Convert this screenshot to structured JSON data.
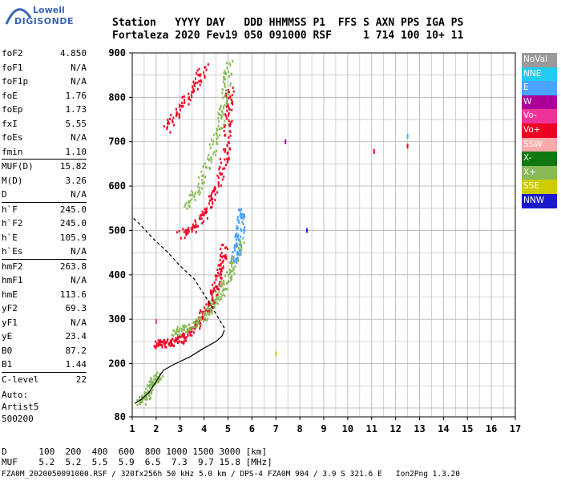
{
  "logo": {
    "line1": "Lowell",
    "line2": "DIGISONDE"
  },
  "header": {
    "row1": [
      "Station",
      "YYYY",
      "DAY",
      "DDD",
      "HHMMSS",
      "P1",
      "FFS",
      "S",
      "AXN",
      "PPS",
      "IGA",
      "PS"
    ],
    "row2": [
      "Fortaleza",
      "2020",
      "Fev19",
      "050",
      "091000",
      "RSF",
      "",
      "1",
      "714",
      "100",
      "10+",
      "11"
    ]
  },
  "params": [
    {
      "label": "foF2",
      "value": "4.850"
    },
    {
      "label": "foF1",
      "value": "N/A"
    },
    {
      "label": "foF1p",
      "value": "N/A"
    },
    {
      "label": "foE",
      "value": "1.76"
    },
    {
      "label": "foEp",
      "value": "1.73"
    },
    {
      "label": "fxI",
      "value": "5.55"
    },
    {
      "label": "foEs",
      "value": "N/A"
    },
    {
      "label": "fmin",
      "value": "1.10"
    },
    {
      "label": "MUF(D)",
      "value": "15.82"
    },
    {
      "label": "M(D)",
      "value": "3.26"
    },
    {
      "label": "D",
      "value": "N/A"
    },
    {
      "label": "h`F",
      "value": "245.0"
    },
    {
      "label": "h`F2",
      "value": "245.0"
    },
    {
      "label": "h`E",
      "value": "105.9"
    },
    {
      "label": "h`Es",
      "value": "N/A"
    },
    {
      "label": "hmF2",
      "value": "263.8"
    },
    {
      "label": "hmF1",
      "value": "N/A"
    },
    {
      "label": "hmE",
      "value": "113.6"
    },
    {
      "label": "yF2",
      "value": "69.3"
    },
    {
      "label": "yF1",
      "value": "N/A"
    },
    {
      "label": "yE",
      "value": "23.4"
    },
    {
      "label": "B0",
      "value": "87.2"
    },
    {
      "label": "B1",
      "value": "1.44"
    },
    {
      "label": "C-level",
      "value": "22"
    }
  ],
  "auto": {
    "line1": "Auto:",
    "line2": "Artist5",
    "line3": "500200"
  },
  "legend": [
    {
      "label": "NoVal",
      "color": "#9a9a9a"
    },
    {
      "label": "NNE",
      "color": "#22ccee"
    },
    {
      "label": "E",
      "color": "#4aa3ff"
    },
    {
      "label": "W",
      "color": "#aa0099"
    },
    {
      "label": "Vo-",
      "color": "#ee3399"
    },
    {
      "label": "Vo+",
      "color": "#ee0022"
    },
    {
      "label": "SSW",
      "color": "#ffaaaa"
    },
    {
      "label": "X-",
      "color": "#117711"
    },
    {
      "label": "X+",
      "color": "#88bb55"
    },
    {
      "label": "SSE",
      "color": "#cccc00"
    },
    {
      "label": "NNW",
      "color": "#1a1acc"
    }
  ],
  "footer": {
    "row1_label": "D",
    "row1": [
      "100",
      "200",
      "400",
      "600",
      "800",
      "1000",
      "1500",
      "3000"
    ],
    "row1_unit": "[km]",
    "row2_label": "MUF",
    "row2": [
      "5.2",
      "5.2",
      "5.5",
      "5.9",
      "6.5",
      "7.3",
      "9.7",
      "15.8"
    ],
    "row2_unit": "[MHz]",
    "file_line": "FZA0M_2020050091000.RSF / 320fx256h 50 kHz 5.0 km / DPS-4 FZA0M 904 / 3.9 S 321.6 E",
    "version": "Ion2Png 1.3.20"
  },
  "chart_data": {
    "type": "scatter",
    "title": "",
    "xlabel": "",
    "ylabel": "",
    "xlim": [
      1,
      17
    ],
    "ylim": [
      80,
      900
    ],
    "x_ticks": [
      1,
      2,
      3,
      4,
      5,
      6,
      7,
      8,
      9,
      10,
      11,
      12,
      13,
      14,
      15,
      16,
      17
    ],
    "y_ticks": [
      80,
      200,
      300,
      400,
      500,
      600,
      700,
      800,
      900
    ],
    "grid": true,
    "ionogram_traces": [
      {
        "name": "E-layer trace",
        "color": "#88bb55",
        "points": [
          [
            1.3,
            115
          ],
          [
            1.5,
            125
          ],
          [
            1.7,
            140
          ],
          [
            1.9,
            165
          ],
          [
            2.1,
            175
          ]
        ]
      },
      {
        "name": "F2 O-trace",
        "color": "#ee0022",
        "points": [
          [
            2.0,
            245
          ],
          [
            2.3,
            248
          ],
          [
            2.8,
            252
          ],
          [
            3.2,
            262
          ],
          [
            3.6,
            285
          ],
          [
            4.0,
            315
          ],
          [
            4.3,
            345
          ],
          [
            4.5,
            380
          ],
          [
            4.7,
            420
          ],
          [
            4.85,
            470
          ]
        ]
      },
      {
        "name": "F2 X-trace",
        "color": "#88bb55",
        "points": [
          [
            2.6,
            270
          ],
          [
            3.2,
            280
          ],
          [
            3.8,
            298
          ],
          [
            4.3,
            330
          ],
          [
            4.7,
            365
          ],
          [
            5.0,
            400
          ],
          [
            5.3,
            440
          ],
          [
            5.5,
            480
          ]
        ]
      },
      {
        "name": "F2 E-dir",
        "color": "#4aa3ff",
        "points": [
          [
            5.2,
            430
          ],
          [
            5.4,
            470
          ],
          [
            5.5,
            510
          ],
          [
            5.55,
            550
          ]
        ]
      },
      {
        "name": "multi-hop",
        "color": "#ee0022",
        "points": [
          [
            3.0,
            490
          ],
          [
            3.6,
            510
          ],
          [
            4.1,
            550
          ],
          [
            4.6,
            610
          ],
          [
            4.9,
            680
          ],
          [
            5.0,
            760
          ],
          [
            5.05,
            820
          ]
        ]
      },
      {
        "name": "multi-hop high",
        "color": "#88bb55",
        "points": [
          [
            3.2,
            560
          ],
          [
            3.8,
            600
          ],
          [
            4.3,
            680
          ],
          [
            4.7,
            750
          ],
          [
            4.9,
            820
          ],
          [
            5.0,
            880
          ]
        ]
      },
      {
        "name": "upper",
        "color": "#ee0022",
        "points": [
          [
            2.4,
            730
          ],
          [
            3.0,
            780
          ],
          [
            3.6,
            830
          ],
          [
            4.0,
            870
          ]
        ]
      },
      {
        "name": "electron density profile",
        "color": "#000000",
        "points": [
          [
            1.1,
            110
          ],
          [
            1.4,
            120
          ],
          [
            1.7,
            135
          ],
          [
            2.0,
            160
          ],
          [
            2.3,
            185
          ],
          [
            2.8,
            200
          ],
          [
            3.4,
            215
          ],
          [
            4.0,
            235
          ],
          [
            4.5,
            250
          ],
          [
            4.75,
            262
          ],
          [
            4.85,
            275
          ]
        ]
      },
      {
        "name": "topside extrapolation",
        "color": "#000000",
        "dashed": true,
        "points": [
          [
            4.85,
            280
          ],
          [
            4.3,
            330
          ],
          [
            3.6,
            390
          ],
          [
            3.0,
            420
          ],
          [
            2.5,
            450
          ],
          [
            1.9,
            480
          ],
          [
            1.3,
            515
          ],
          [
            1.0,
            530
          ]
        ]
      }
    ],
    "isolated_points": [
      {
        "x": 7.4,
        "y": 700,
        "color": "#aa0099"
      },
      {
        "x": 8.3,
        "y": 500,
        "color": "#1a1acc"
      },
      {
        "x": 11.1,
        "y": 678,
        "color": "#ee0022"
      },
      {
        "x": 12.5,
        "y": 690,
        "color": "#ee0022"
      },
      {
        "x": 12.5,
        "y": 712,
        "color": "#4aa3ff"
      },
      {
        "x": 7.0,
        "y": 222,
        "color": "#cccc00"
      },
      {
        "x": 2.0,
        "y": 295,
        "color": "#ee3399"
      }
    ]
  }
}
